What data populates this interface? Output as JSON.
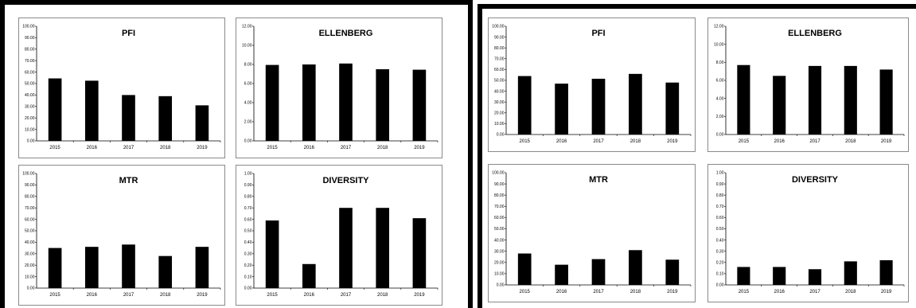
{
  "chart_data": [
    {
      "type": "bar",
      "title": "PFI",
      "categories": [
        "2015",
        "2016",
        "2017",
        "2018",
        "2019"
      ],
      "values": [
        54.5,
        52.5,
        40.0,
        39.0,
        31.0
      ],
      "ylim": [
        0,
        100
      ],
      "yticks": [
        "0.00",
        "10.00",
        "20.00",
        "30.00",
        "40.00",
        "50.00",
        "60.00",
        "70.00",
        "80.00",
        "90.00",
        "100.00"
      ]
    },
    {
      "type": "bar",
      "title": "ELLENBERG",
      "categories": [
        "2015",
        "2016",
        "2017",
        "2018",
        "2019"
      ],
      "values": [
        7.95,
        8.0,
        8.1,
        7.5,
        7.45
      ],
      "ylim": [
        0,
        12
      ],
      "yticks": [
        "0.00",
        "2.00",
        "4.00",
        "6.00",
        "8.00",
        "10.00",
        "12.00"
      ]
    },
    {
      "type": "bar",
      "title": "MTR",
      "categories": [
        "2015",
        "2016",
        "2017",
        "2018",
        "2019"
      ],
      "values": [
        35.0,
        36.0,
        38.0,
        28.0,
        36.0
      ],
      "ylim": [
        0,
        100
      ],
      "yticks": [
        "0.00",
        "10.00",
        "20.00",
        "30.00",
        "40.00",
        "50.00",
        "60.00",
        "70.00",
        "80.00",
        "90.00",
        "100.00"
      ]
    },
    {
      "type": "bar",
      "title": "DIVERSITY",
      "categories": [
        "2015",
        "2016",
        "2017",
        "2018",
        "2019"
      ],
      "values": [
        0.59,
        0.21,
        0.7,
        0.7,
        0.61
      ],
      "ylim": [
        0,
        1
      ],
      "yticks": [
        "0.00",
        "0.10",
        "0.20",
        "0.30",
        "0.40",
        "0.50",
        "0.60",
        "0.70",
        "0.80",
        "0.90",
        "1.00"
      ]
    },
    {
      "type": "bar",
      "title": "PFI",
      "categories": [
        "2015",
        "2016",
        "2017",
        "2018",
        "2019"
      ],
      "values": [
        54.0,
        47.0,
        51.5,
        56.0,
        48.0
      ],
      "ylim": [
        0,
        100
      ],
      "yticks": [
        "0.00",
        "10.00",
        "20.00",
        "30.00",
        "40.00",
        "50.00",
        "60.00",
        "70.00",
        "80.00",
        "90.00",
        "100.00"
      ]
    },
    {
      "type": "bar",
      "title": "ELLENBERG",
      "categories": [
        "2015",
        "2016",
        "2017",
        "2018",
        "2019"
      ],
      "values": [
        7.7,
        6.5,
        7.6,
        7.6,
        7.2
      ],
      "ylim": [
        0,
        12
      ],
      "yticks": [
        "0.00",
        "2.00",
        "4.00",
        "6.00",
        "8.00",
        "10.00",
        "12.00"
      ]
    },
    {
      "type": "bar",
      "title": "MTR",
      "categories": [
        "2015",
        "2016",
        "2017",
        "2018",
        "2019"
      ],
      "values": [
        28.0,
        18.0,
        23.0,
        31.0,
        22.5
      ],
      "ylim": [
        0,
        100
      ],
      "yticks": [
        "0.00",
        "10.00",
        "20.00",
        "30.00",
        "40.00",
        "50.00",
        "60.00",
        "70.00",
        "80.00",
        "90.00",
        "100.00"
      ]
    },
    {
      "type": "bar",
      "title": "DIVERSITY",
      "categories": [
        "2015",
        "2016",
        "2017",
        "2018",
        "2019"
      ],
      "values": [
        0.16,
        0.16,
        0.14,
        0.21,
        0.22
      ],
      "ylim": [
        0,
        1
      ],
      "yticks": [
        "0.00",
        "0.10",
        "0.20",
        "0.30",
        "0.40",
        "0.50",
        "0.60",
        "0.70",
        "0.80",
        "0.90",
        "1.00"
      ]
    }
  ]
}
